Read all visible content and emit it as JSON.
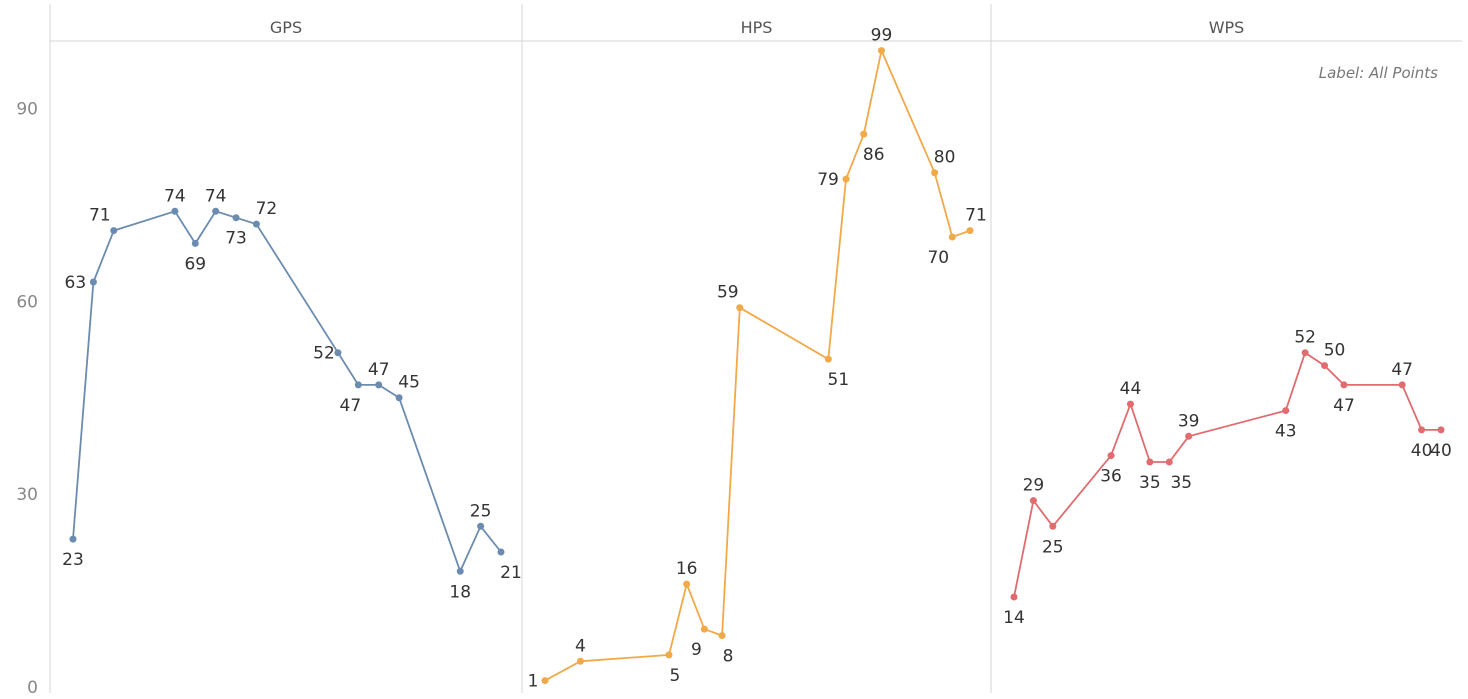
{
  "caption": "Label: All Points",
  "chart_data": {
    "type": "line",
    "ylim": [
      0,
      105
    ],
    "yticks": [
      0,
      30,
      60,
      90
    ],
    "grid": false,
    "panels": [
      {
        "name": "GPS",
        "color": "#6b8cb0",
        "values": [
          23,
          63,
          71,
          74,
          69,
          74,
          73,
          72,
          52,
          47,
          47,
          45,
          18,
          25,
          21
        ],
        "x": [
          0,
          1,
          2,
          5,
          6,
          7,
          8,
          9,
          13,
          14,
          15,
          16,
          19,
          20,
          21
        ]
      },
      {
        "name": "HPS",
        "color": "#f1a94a",
        "values": [
          1,
          4,
          5,
          16,
          9,
          8,
          59,
          51,
          79,
          86,
          99,
          80,
          70,
          71
        ],
        "x": [
          0,
          2,
          7,
          8,
          9,
          10,
          11,
          16,
          17,
          18,
          19,
          22,
          23,
          24
        ]
      },
      {
        "name": "WPS",
        "color": "#e06c6f",
        "values": [
          14,
          29,
          25,
          36,
          44,
          35,
          35,
          39,
          43,
          52,
          50,
          47,
          47,
          40,
          40
        ],
        "x": [
          0,
          1,
          2,
          5,
          6,
          7,
          8,
          9,
          14,
          15,
          16,
          17,
          20,
          21,
          22
        ]
      }
    ]
  }
}
